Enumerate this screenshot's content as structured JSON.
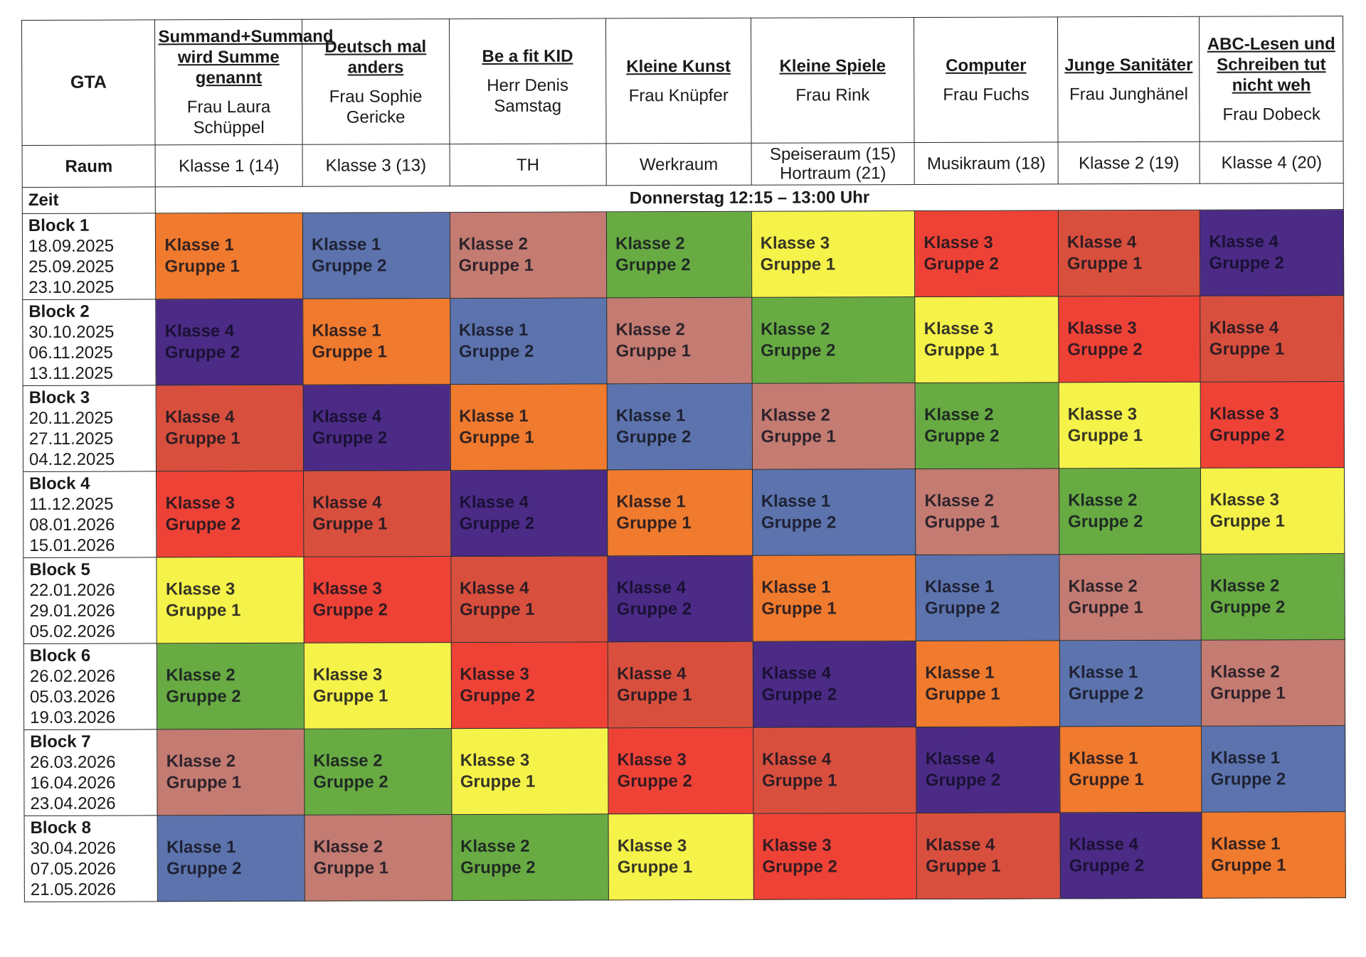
{
  "header": {
    "gta_label": "GTA",
    "room_label": "Raum",
    "time_label": "Zeit",
    "time_span": "Donnerstag 12:15 – 13:00 Uhr"
  },
  "courses": [
    {
      "title": "Summand+Summand wird Summe genannt",
      "teacher": "Frau Laura Schüppel",
      "room": "Klasse 1 (14)"
    },
    {
      "title": "Deutsch mal anders",
      "teacher": "Frau  Sophie Gericke",
      "room": "Klasse 3 (13)"
    },
    {
      "title": "Be a fit KID",
      "teacher": "Herr Denis Samstag",
      "room": "TH"
    },
    {
      "title": "Kleine Kunst",
      "teacher": "Frau Knüpfer",
      "room": "Werkraum"
    },
    {
      "title": "Kleine Spiele",
      "teacher": "Frau Rink",
      "room": "Speiseraum (15) Hortraum (21)"
    },
    {
      "title": "Computer",
      "teacher": "Frau Fuchs",
      "room": "Musikraum (18)"
    },
    {
      "title": "Junge Sanitäter",
      "teacher": "Frau Junghänel",
      "room": "Klasse 2 (19)"
    },
    {
      "title": "ABC-Lesen und Schreiben tut nicht weh",
      "teacher": "Frau Dobeck",
      "room": "Klasse 4 (20)"
    }
  ],
  "group_colors": {
    "K1G1": "#f07a2e",
    "K1G2": "#5c73ad",
    "K2G1": "#c37b72",
    "K2G2": "#68ab43",
    "K3G1": "#f5f24a",
    "K3G2": "#ee4236",
    "K4G1": "#d84f3e",
    "K4G2": "#4b2b85"
  },
  "blocks": [
    {
      "name": "Block 1",
      "dates": [
        "18.09.2025",
        "25.09.2025",
        "23.10.2025"
      ],
      "cells": [
        {
          "klasse": "Klasse 1",
          "gruppe": "Gruppe 1",
          "color": "orange"
        },
        {
          "klasse": "Klasse 1",
          "gruppe": "Gruppe 2",
          "color": "blue"
        },
        {
          "klasse": "Klasse 2",
          "gruppe": "Gruppe 1",
          "color": "rose"
        },
        {
          "klasse": "Klasse 2",
          "gruppe": "Gruppe 2",
          "color": "green"
        },
        {
          "klasse": "Klasse 3",
          "gruppe": "Gruppe 1",
          "color": "yellow"
        },
        {
          "klasse": "Klasse 3",
          "gruppe": "Gruppe 2",
          "color": "red"
        },
        {
          "klasse": "Klasse 4",
          "gruppe": "Gruppe 1",
          "color": "brick"
        },
        {
          "klasse": "Klasse 4",
          "gruppe": "Gruppe 2",
          "color": "purple"
        }
      ]
    },
    {
      "name": "Block 2",
      "dates": [
        "30.10.2025",
        "06.11.2025",
        "13.11.2025"
      ],
      "cells": [
        {
          "klasse": "Klasse 4",
          "gruppe": "Gruppe 2",
          "color": "purple"
        },
        {
          "klasse": "Klasse 1",
          "gruppe": "Gruppe 1",
          "color": "orange"
        },
        {
          "klasse": "Klasse 1",
          "gruppe": "Gruppe 2",
          "color": "blue"
        },
        {
          "klasse": "Klasse 2",
          "gruppe": "Gruppe 1",
          "color": "rose"
        },
        {
          "klasse": "Klasse 2",
          "gruppe": "Gruppe 2",
          "color": "green"
        },
        {
          "klasse": "Klasse 3",
          "gruppe": "Gruppe 1",
          "color": "yellow"
        },
        {
          "klasse": "Klasse 3",
          "gruppe": "Gruppe 2",
          "color": "red"
        },
        {
          "klasse": "Klasse 4",
          "gruppe": "Gruppe 1",
          "color": "brick"
        }
      ]
    },
    {
      "name": "Block 3",
      "dates": [
        "20.11.2025",
        "27.11.2025",
        "04.12.2025"
      ],
      "cells": [
        {
          "klasse": "Klasse 4",
          "gruppe": "Gruppe 1",
          "color": "brick"
        },
        {
          "klasse": "Klasse 4",
          "gruppe": "Gruppe 2",
          "color": "purple"
        },
        {
          "klasse": "Klasse 1",
          "gruppe": "Gruppe 1",
          "color": "orange"
        },
        {
          "klasse": "Klasse 1",
          "gruppe": "Gruppe 2",
          "color": "blue"
        },
        {
          "klasse": "Klasse 2",
          "gruppe": "Gruppe 1",
          "color": "rose"
        },
        {
          "klasse": "Klasse 2",
          "gruppe": "Gruppe 2",
          "color": "green"
        },
        {
          "klasse": "Klasse 3",
          "gruppe": "Gruppe 1",
          "color": "yellow"
        },
        {
          "klasse": "Klasse 3",
          "gruppe": "Gruppe 2",
          "color": "red"
        }
      ]
    },
    {
      "name": "Block 4",
      "dates": [
        "11.12.2025",
        "08.01.2026",
        "15.01.2026"
      ],
      "cells": [
        {
          "klasse": "Klasse 3",
          "gruppe": "Gruppe 2",
          "color": "red"
        },
        {
          "klasse": "Klasse 4",
          "gruppe": "Gruppe 1",
          "color": "brick"
        },
        {
          "klasse": "Klasse 4",
          "gruppe": "Gruppe 2",
          "color": "purple"
        },
        {
          "klasse": "Klasse 1",
          "gruppe": "Gruppe 1",
          "color": "orange"
        },
        {
          "klasse": "Klasse 1",
          "gruppe": "Gruppe 2",
          "color": "blue"
        },
        {
          "klasse": "Klasse 2",
          "gruppe": "Gruppe 1",
          "color": "rose"
        },
        {
          "klasse": "Klasse 2",
          "gruppe": "Gruppe 2",
          "color": "green"
        },
        {
          "klasse": "Klasse 3",
          "gruppe": "Gruppe 1",
          "color": "yellow"
        }
      ]
    },
    {
      "name": "Block 5",
      "dates": [
        "22.01.2026",
        "29.01.2026",
        "05.02.2026"
      ],
      "cells": [
        {
          "klasse": "Klasse 3",
          "gruppe": "Gruppe 1",
          "color": "yellow"
        },
        {
          "klasse": "Klasse 3",
          "gruppe": "Gruppe 2",
          "color": "red"
        },
        {
          "klasse": "Klasse 4",
          "gruppe": "Gruppe 1",
          "color": "brick"
        },
        {
          "klasse": "Klasse 4",
          "gruppe": "Gruppe 2",
          "color": "purple"
        },
        {
          "klasse": "Klasse 1",
          "gruppe": "Gruppe 1",
          "color": "orange"
        },
        {
          "klasse": "Klasse 1",
          "gruppe": "Gruppe 2",
          "color": "blue"
        },
        {
          "klasse": "Klasse 2",
          "gruppe": "Gruppe 1",
          "color": "rose"
        },
        {
          "klasse": "Klasse 2",
          "gruppe": "Gruppe 2",
          "color": "green"
        }
      ]
    },
    {
      "name": "Block 6",
      "dates": [
        "26.02.2026",
        "05.03.2026",
        "19.03.2026"
      ],
      "cells": [
        {
          "klasse": "Klasse 2",
          "gruppe": "Gruppe 2",
          "color": "green"
        },
        {
          "klasse": "Klasse 3",
          "gruppe": "Gruppe 1",
          "color": "yellow"
        },
        {
          "klasse": "Klasse 3",
          "gruppe": "Gruppe 2",
          "color": "red"
        },
        {
          "klasse": "Klasse 4",
          "gruppe": "Gruppe 1",
          "color": "brick"
        },
        {
          "klasse": "Klasse 4",
          "gruppe": "Gruppe 2",
          "color": "purple"
        },
        {
          "klasse": "Klasse 1",
          "gruppe": "Gruppe 1",
          "color": "orange"
        },
        {
          "klasse": "Klasse 1",
          "gruppe": "Gruppe 2",
          "color": "blue"
        },
        {
          "klasse": "Klasse 2",
          "gruppe": "Gruppe 1",
          "color": "rose"
        }
      ]
    },
    {
      "name": "Block 7",
      "dates": [
        "26.03.2026",
        "16.04.2026",
        "23.04.2026"
      ],
      "cells": [
        {
          "klasse": "Klasse 2",
          "gruppe": "Gruppe 1",
          "color": "rose"
        },
        {
          "klasse": "Klasse 2",
          "gruppe": "Gruppe 2",
          "color": "green"
        },
        {
          "klasse": "Klasse 3",
          "gruppe": "Gruppe 1",
          "color": "yellow"
        },
        {
          "klasse": "Klasse 3",
          "gruppe": "Gruppe 2",
          "color": "red"
        },
        {
          "klasse": "Klasse 4",
          "gruppe": "Gruppe 1",
          "color": "brick"
        },
        {
          "klasse": "Klasse 4",
          "gruppe": "Gruppe 2",
          "color": "purple"
        },
        {
          "klasse": "Klasse 1",
          "gruppe": "Gruppe 1",
          "color": "orange"
        },
        {
          "klasse": "Klasse 1",
          "gruppe": "Gruppe 2",
          "color": "blue"
        }
      ]
    },
    {
      "name": "Block 8",
      "dates": [
        "30.04.2026",
        "07.05.2026",
        "21.05.2026"
      ],
      "cells": [
        {
          "klasse": "Klasse 1",
          "gruppe": "Gruppe 2",
          "color": "blue"
        },
        {
          "klasse": "Klasse 2",
          "gruppe": "Gruppe 1",
          "color": "rose"
        },
        {
          "klasse": "Klasse 2",
          "gruppe": "Gruppe 2",
          "color": "green"
        },
        {
          "klasse": "Klasse 3",
          "gruppe": "Gruppe 1",
          "color": "yellow"
        },
        {
          "klasse": "Klasse 3",
          "gruppe": "Gruppe 2",
          "color": "red"
        },
        {
          "klasse": "Klasse 4",
          "gruppe": "Gruppe 1",
          "color": "brick"
        },
        {
          "klasse": "Klasse 4",
          "gruppe": "Gruppe 2",
          "color": "purple"
        },
        {
          "klasse": "Klasse 1",
          "gruppe": "Gruppe 1",
          "color": "orange"
        }
      ]
    }
  ]
}
